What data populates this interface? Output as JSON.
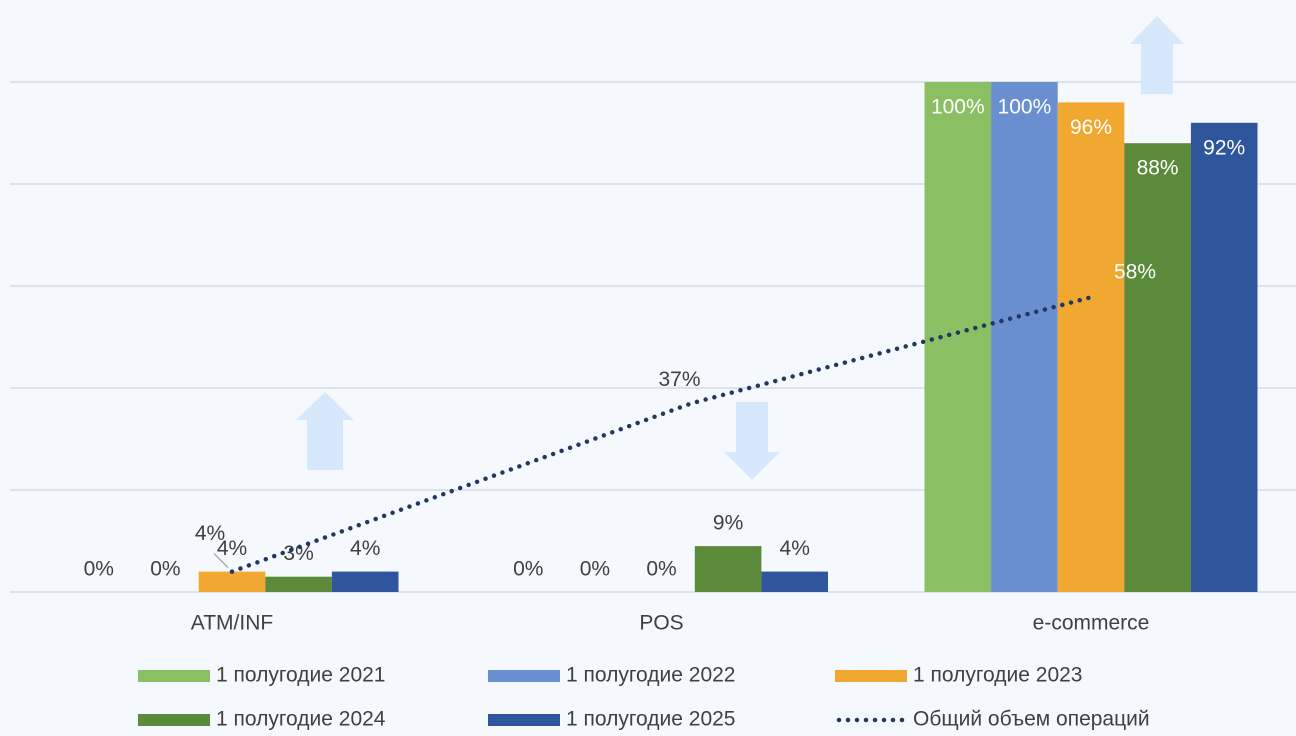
{
  "chart_data": {
    "type": "bar",
    "categories": [
      "ATM/INF",
      "POS",
      "e-commerce"
    ],
    "series": [
      {
        "name": "1 полугодие 2021",
        "color": "#8bbf63",
        "values": [
          0,
          0,
          100
        ],
        "value_labels": [
          "0%",
          "0%",
          "100%"
        ]
      },
      {
        "name": "1 полугодие 2022",
        "color": "#6a8fd0",
        "values": [
          0,
          0,
          100
        ],
        "value_labels": [
          "0%",
          "0%",
          "100%"
        ]
      },
      {
        "name": "1 полугодие 2023",
        "color": "#f0a830",
        "values": [
          4,
          0,
          96
        ],
        "value_labels": [
          "4%",
          "0%",
          "96%"
        ]
      },
      {
        "name": "1 полугодие 2024",
        "color": "#5a8a3a",
        "values": [
          3,
          9,
          88
        ],
        "value_labels": [
          "3%",
          "9%",
          "88%"
        ]
      },
      {
        "name": "1 полугодие 2025",
        "color": "#2f559c",
        "values": [
          4,
          4,
          92
        ],
        "value_labels": [
          "4%",
          "4%",
          "92%"
        ]
      },
      {
        "name": "Общий объем операций",
        "type": "line",
        "color": "#1f3864",
        "values": [
          4,
          37,
          58
        ],
        "value_labels": [
          "4%",
          "37%",
          "58%"
        ]
      }
    ],
    "ylim": [
      0,
      100
    ],
    "yticks": [
      0,
      20,
      40,
      60,
      80,
      100
    ],
    "grid": true
  }
}
